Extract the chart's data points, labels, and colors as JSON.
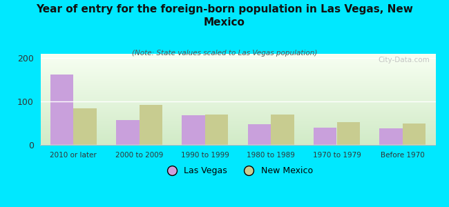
{
  "title": "Year of entry for the foreign-born population in Las Vegas, New\nMexico",
  "subtitle": "(Note: State values scaled to Las Vegas population)",
  "categories": [
    "2010 or later",
    "2000 to 2009",
    "1990 to 1999",
    "1980 to 1989",
    "1970 to 1979",
    "Before 1970"
  ],
  "las_vegas_values": [
    163,
    57,
    68,
    48,
    40,
    38
  ],
  "new_mexico_values": [
    85,
    92,
    70,
    70,
    53,
    50
  ],
  "las_vegas_color": "#c9a0dc",
  "new_mexico_color": "#c8cc90",
  "background_outer": "#00e8ff",
  "plot_bg_top": "#f0f8e8",
  "plot_bg_bottom": "#d8eecc",
  "ylim": [
    0,
    210
  ],
  "yticks": [
    0,
    100,
    200
  ],
  "watermark": "City-Data.com",
  "legend_las_vegas": "Las Vegas",
  "legend_new_mexico": "New Mexico",
  "bar_width": 0.35
}
